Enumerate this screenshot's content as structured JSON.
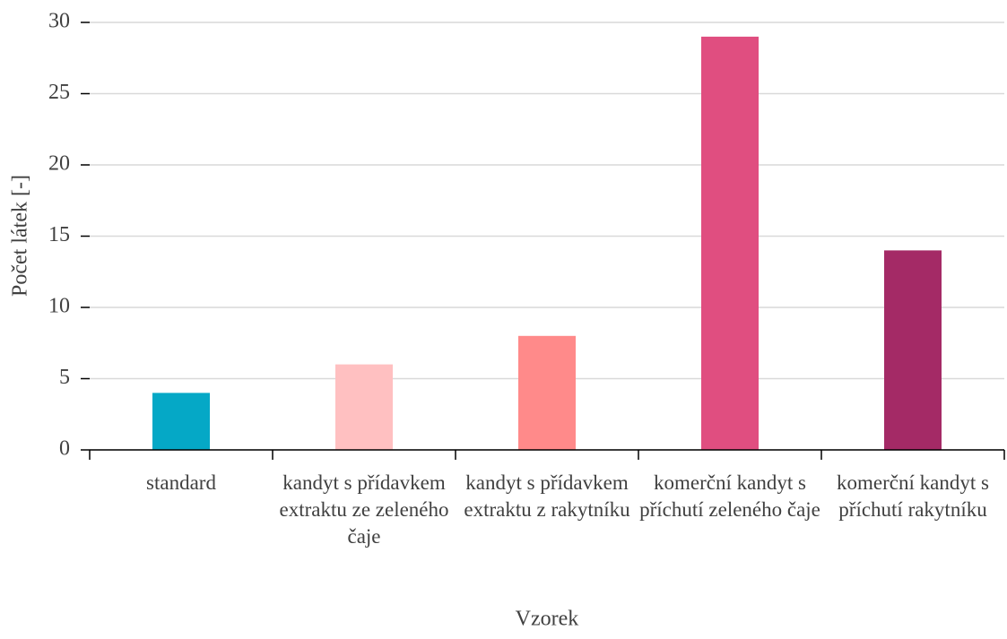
{
  "chart_data": {
    "type": "bar",
    "categories": [
      "standard",
      "kandyt s přídavkem extraktu ze zeleného čaje",
      "kandyt s přídavkem extraktu z rakytníku",
      "komerční kandyt s příchutí zeleného čaje",
      "komerční kandyt s příchutí rakytníku"
    ],
    "values": [
      4,
      6,
      8,
      29,
      14
    ],
    "colors": [
      "#05a8c6",
      "#ffc0c1",
      "#ff8a8a",
      "#e04e80",
      "#a42a66"
    ],
    "x_label": "Vzorek",
    "y_label": "Počet látek  [-]",
    "ylim": [
      0,
      30
    ],
    "yticks": [
      0,
      5,
      10,
      15,
      20,
      25,
      30
    ],
    "grid": true
  }
}
